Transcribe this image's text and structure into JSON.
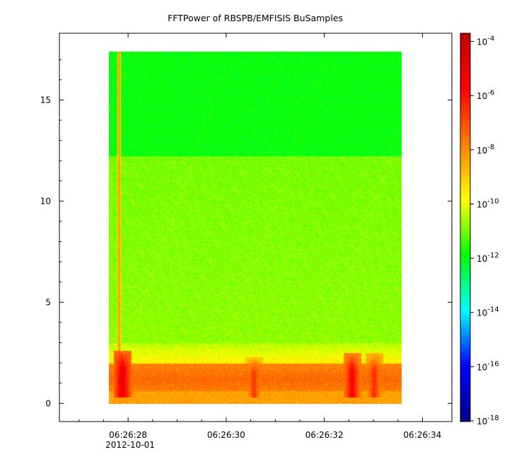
{
  "chart_data": {
    "type": "heatmap",
    "title": "FFTPower of RBSPB/EMFISIS  BuSamples",
    "xlabel": "",
    "ylabel": "",
    "x_ticks": [
      "06:26:28",
      "06:26:30",
      "06:26:32",
      "06:26:34"
    ],
    "x_tick_values_s": [
      28,
      30,
      32,
      34
    ],
    "x_date_label": "2012-10-01",
    "xlim_s": [
      26.6,
      34.6
    ],
    "data_x_range_s": [
      27.65,
      33.6
    ],
    "y_ticks": [
      "0",
      "5",
      "10",
      "15"
    ],
    "y_tick_values": [
      0,
      5,
      10,
      15
    ],
    "ylim": [
      -0.9,
      18.3
    ],
    "data_y_range": [
      0,
      17.5
    ],
    "colorbar": {
      "scale": "log",
      "range_exponents": [
        -18,
        -3.7
      ],
      "tick_exponents": [
        -4,
        -6,
        -8,
        -10,
        -12,
        -14,
        -16,
        -18
      ],
      "tick_base": "10",
      "colormap": [
        "#00008b",
        "#0000ff",
        "#00ffff",
        "#00ff00",
        "#ffff00",
        "#ff8000",
        "#ff0000",
        "#c00000"
      ]
    },
    "features": [
      {
        "kind": "spike",
        "x_s": 27.85,
        "y_top": 17.5,
        "level_exp": -8
      },
      {
        "kind": "burst",
        "x_s": 27.92,
        "y_top": 2.5,
        "level_exp": -5
      },
      {
        "kind": "burst",
        "x_s": 30.6,
        "y_top": 2.2,
        "level_exp": -6.5
      },
      {
        "kind": "burst",
        "x_s": 32.6,
        "y_top": 2.4,
        "level_exp": -5.5
      },
      {
        "kind": "burst",
        "x_s": 33.05,
        "y_top": 2.4,
        "level_exp": -6.3
      }
    ],
    "band_boundary_y": 12.3,
    "grid": false,
    "legend": "colorbar-right"
  }
}
